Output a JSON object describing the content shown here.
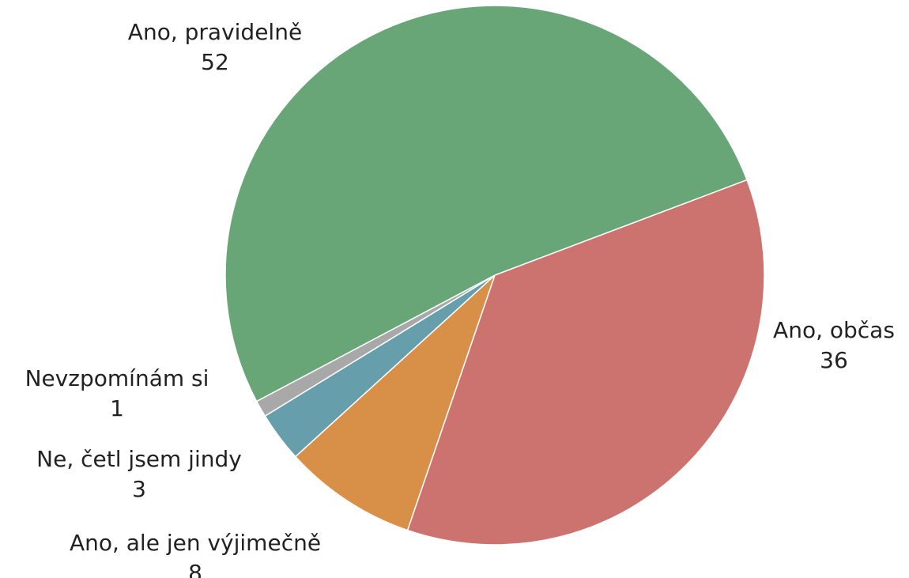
{
  "chart_data": {
    "type": "pie",
    "categories": [
      "Ano, občas",
      "Ano, ale jen výjimečně",
      "Ne, četl jsem jindy",
      "Nevzpomínám si",
      "Ano, pravidelně"
    ],
    "values": [
      36,
      8,
      3,
      1,
      52
    ],
    "colors": [
      "#cc7370",
      "#d88f47",
      "#669eab",
      "#a8a8a8",
      "#68a678"
    ]
  }
}
